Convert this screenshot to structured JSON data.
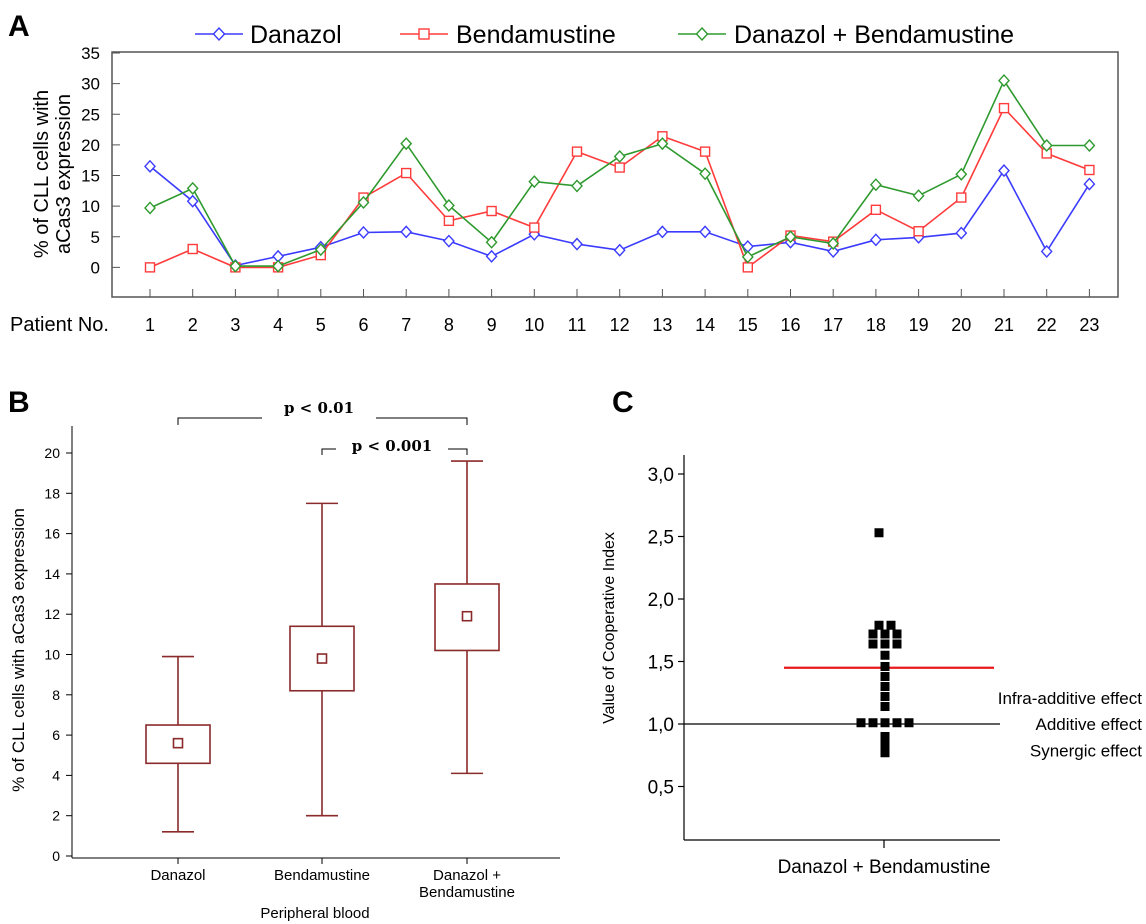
{
  "panels": {
    "A": {
      "label": "A"
    },
    "B": {
      "label": "B"
    },
    "C": {
      "label": "C"
    }
  },
  "colors": {
    "danazol": "#3b3bff",
    "bendamustine": "#ff3b3b",
    "combo": "#2e9a2e",
    "box": "#8b2a2a",
    "threshold": "#e8191c",
    "frame": "#555555"
  },
  "chart_data": [
    {
      "type": "line",
      "panel": "A",
      "xlabel": "Patient No.",
      "ylabel_line1": "% of CLL cells with",
      "ylabel_line2": "aCas3 expression",
      "ylim": [
        -5,
        35
      ],
      "yticks": [
        0,
        5,
        10,
        15,
        20,
        25,
        30,
        35
      ],
      "categories": [
        "1",
        "2",
        "3",
        "4",
        "5",
        "6",
        "7",
        "8",
        "9",
        "10",
        "11",
        "12",
        "13",
        "14",
        "15",
        "16",
        "17",
        "18",
        "19",
        "20",
        "21",
        "22",
        "23"
      ],
      "legend_position": "top",
      "grid": false,
      "series": [
        {
          "name": "Danazol",
          "marker": "diamond",
          "color": "#3b3bff",
          "values": [
            16.5,
            10.8,
            0.3,
            1.8,
            3.3,
            5.7,
            5.8,
            4.3,
            1.8,
            5.4,
            3.8,
            2.8,
            5.8,
            5.8,
            3.4,
            4.1,
            2.6,
            4.5,
            4.9,
            5.6,
            15.8,
            2.6,
            13.6
          ]
        },
        {
          "name": "Bendamustine",
          "marker": "square",
          "color": "#ff3b3b",
          "values": [
            0.0,
            3.0,
            0.0,
            0.0,
            2.0,
            11.4,
            15.4,
            7.6,
            9.2,
            6.5,
            18.9,
            16.3,
            21.4,
            18.9,
            0.0,
            5.2,
            4.2,
            9.4,
            5.9,
            11.4,
            26.0,
            18.6,
            15.9
          ]
        },
        {
          "name": "Danazol + Bendamustine",
          "marker": "diamond",
          "color": "#2e9a2e",
          "values": [
            9.7,
            12.9,
            0.2,
            0.2,
            2.9,
            10.6,
            20.2,
            10.1,
            4.1,
            14.0,
            13.3,
            18.1,
            20.2,
            15.3,
            1.7,
            5.0,
            3.9,
            13.5,
            11.7,
            15.2,
            30.5,
            19.9,
            19.9
          ]
        }
      ]
    },
    {
      "type": "box",
      "panel": "B",
      "ylabel": "% of CLL cells with aCas3 expression",
      "xlabel": "Peripheral blood",
      "ylim": [
        0,
        21.5
      ],
      "yticks": [
        0,
        2,
        4,
        6,
        8,
        10,
        12,
        14,
        16,
        18,
        20
      ],
      "categories": [
        "Danazol",
        "Bendamustine",
        "Danazol + Bendamustine"
      ],
      "category_lines": [
        [
          "Danazol"
        ],
        [
          "Bendamustine"
        ],
        [
          "Danazol +",
          "Bendamustine"
        ]
      ],
      "boxes": [
        {
          "whisker_low": 1.2,
          "q1": 4.6,
          "mean": 5.6,
          "q3": 6.5,
          "whisker_high": 9.9
        },
        {
          "whisker_low": 2.0,
          "q1": 8.2,
          "mean": 9.8,
          "q3": 11.4,
          "whisker_high": 17.5
        },
        {
          "whisker_low": 4.1,
          "q1": 10.2,
          "mean": 11.9,
          "q3": 13.5,
          "whisker_high": 19.6
        }
      ],
      "annotations": [
        {
          "text": "p < 0.01",
          "from": 0,
          "to": 2
        },
        {
          "text": "p < 0.001",
          "from": 1,
          "to": 2
        }
      ]
    },
    {
      "type": "scatter",
      "panel": "C",
      "ylabel": "Value of Cooperative Index",
      "category": "Danazol + Bendamustine",
      "ylim": [
        0.18,
        3.15
      ],
      "yticks": [
        "0,5",
        "1,0",
        "1,5",
        "2,0",
        "2,5",
        "3,0"
      ],
      "ytick_values": [
        0.5,
        1.0,
        1.5,
        2.0,
        2.5,
        3.0
      ],
      "reference_line": {
        "value": 1.0,
        "label": "Additive effect"
      },
      "threshold_line": {
        "value": 1.45
      },
      "region_labels": [
        {
          "text": "Infra-additive effect",
          "value": 1.21
        },
        {
          "text": "Synergic effect",
          "value": 0.79
        }
      ],
      "points": [
        {
          "offset": -0.5,
          "y": 2.53
        },
        {
          "offset": -0.5,
          "y": 1.79
        },
        {
          "offset": 0.5,
          "y": 1.79
        },
        {
          "offset": -1,
          "y": 1.72
        },
        {
          "offset": 0,
          "y": 1.72
        },
        {
          "offset": 1,
          "y": 1.72
        },
        {
          "offset": -1,
          "y": 1.64
        },
        {
          "offset": 0,
          "y": 1.64
        },
        {
          "offset": 1,
          "y": 1.64
        },
        {
          "offset": 0,
          "y": 1.55
        },
        {
          "offset": 0,
          "y": 1.46
        },
        {
          "offset": 0,
          "y": 1.38
        },
        {
          "offset": 0,
          "y": 1.3
        },
        {
          "offset": 0,
          "y": 1.22
        },
        {
          "offset": 0,
          "y": 1.14
        },
        {
          "offset": -2,
          "y": 1.01
        },
        {
          "offset": -1,
          "y": 1.01
        },
        {
          "offset": 0,
          "y": 1.01
        },
        {
          "offset": 1,
          "y": 1.01
        },
        {
          "offset": 2,
          "y": 1.01
        },
        {
          "offset": 0,
          "y": 0.9
        },
        {
          "offset": 0,
          "y": 0.84
        },
        {
          "offset": 0,
          "y": 0.77
        }
      ]
    }
  ]
}
